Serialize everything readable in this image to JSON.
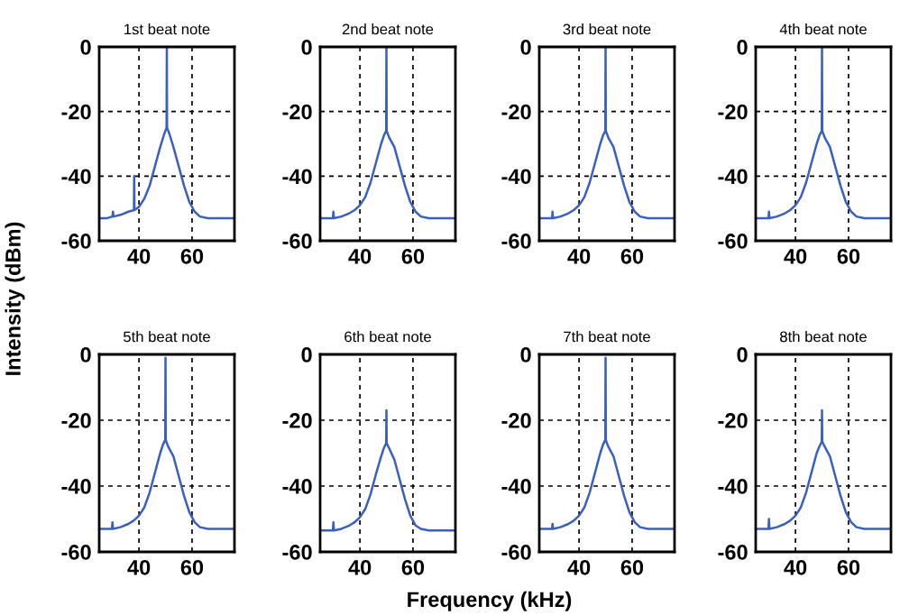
{
  "chart_data": [
    {
      "type": "line",
      "title": "1st beat note",
      "ylabel": "Intensity (dBm)",
      "color": "#3a5fbf",
      "xlim": [
        25,
        76
      ],
      "ylim": [
        -60,
        0
      ],
      "xticks": [
        40,
        60
      ],
      "yticks": [
        0,
        -20,
        -40,
        -60
      ],
      "grid": true,
      "x": [
        25,
        28,
        30,
        30.2,
        30.4,
        33,
        36,
        38.1,
        38.2,
        38.3,
        40,
        42,
        44,
        46,
        48,
        49.5,
        50.4,
        50.5,
        50.6,
        51.5,
        53,
        55,
        57,
        59,
        61,
        63,
        66,
        70,
        76
      ],
      "values": [
        -53,
        -53,
        -52.5,
        -51,
        -52.5,
        -52,
        -51,
        -50.5,
        -40,
        -50.5,
        -49.5,
        -47,
        -43,
        -37,
        -31,
        -27,
        -25,
        0,
        -25,
        -27,
        -31,
        -37,
        -43,
        -48,
        -51,
        -52.5,
        -53,
        -53,
        -53
      ]
    },
    {
      "type": "line",
      "title": "2nd beat note",
      "color": "#3a5fbf",
      "xlim": [
        25,
        76
      ],
      "ylim": [
        -60,
        0
      ],
      "xticks": [
        40,
        60
      ],
      "yticks": [
        0,
        -20,
        -40,
        -60
      ],
      "grid": true,
      "x": [
        25,
        28,
        29.8,
        30,
        30.2,
        33,
        36,
        38,
        40,
        42,
        44,
        46,
        48,
        49,
        49.9,
        50,
        50.1,
        51,
        53,
        55,
        57,
        59,
        61,
        63,
        66,
        70,
        76
      ],
      "values": [
        -53,
        -53,
        -53,
        -51,
        -53,
        -52.5,
        -51.5,
        -50.5,
        -49,
        -46.5,
        -42,
        -36,
        -30,
        -27.5,
        -26,
        0,
        -26,
        -28,
        -31,
        -37,
        -43,
        -48,
        -51,
        -52.5,
        -53,
        -53,
        -53
      ]
    },
    {
      "type": "line",
      "title": "3rd beat note",
      "color": "#3a5fbf",
      "xlim": [
        25,
        76
      ],
      "ylim": [
        -60,
        0
      ],
      "xticks": [
        40,
        60
      ],
      "yticks": [
        0,
        -20,
        -40,
        -60
      ],
      "grid": true,
      "x": [
        25,
        28,
        29.8,
        30,
        30.2,
        33,
        36,
        38,
        40,
        42,
        44,
        46,
        48,
        49,
        49.9,
        50,
        50.1,
        51,
        53,
        55,
        57,
        59,
        61,
        63,
        66,
        70,
        76
      ],
      "values": [
        -53,
        -53,
        -53,
        -51,
        -53,
        -52.5,
        -51.5,
        -50.5,
        -49,
        -46.5,
        -42,
        -36,
        -30,
        -27.5,
        -26,
        0,
        -26,
        -28,
        -31,
        -37,
        -43,
        -48,
        -51,
        -52.5,
        -53,
        -53,
        -53
      ]
    },
    {
      "type": "line",
      "title": "4th beat note",
      "color": "#3a5fbf",
      "xlim": [
        25,
        76
      ],
      "ylim": [
        -60,
        0
      ],
      "xticks": [
        40,
        60
      ],
      "yticks": [
        0,
        -20,
        -40,
        -60
      ],
      "grid": true,
      "x": [
        25,
        28,
        29.8,
        30,
        30.2,
        33,
        36,
        38,
        40,
        42,
        44,
        46,
        48,
        49,
        49.9,
        50,
        50.1,
        51,
        53,
        55,
        57,
        59,
        61,
        63,
        66,
        70,
        76
      ],
      "values": [
        -53,
        -53,
        -53,
        -51,
        -53,
        -52.5,
        -51.5,
        -50.5,
        -49,
        -46.5,
        -42,
        -36,
        -30,
        -27.5,
        -26,
        0,
        -26,
        -28,
        -31,
        -37,
        -43,
        -48,
        -51,
        -52.5,
        -53,
        -53,
        -53
      ]
    },
    {
      "type": "line",
      "title": "5th beat note",
      "color": "#3a5fbf",
      "xlim": [
        25,
        76
      ],
      "ylim": [
        -60,
        0
      ],
      "xticks": [
        40,
        60
      ],
      "yticks": [
        0,
        -20,
        -40,
        -60
      ],
      "grid": true,
      "x": [
        25,
        28,
        29.8,
        30,
        30.2,
        33,
        36,
        38,
        40,
        42,
        44,
        46,
        48,
        49,
        49.9,
        50,
        50.1,
        51,
        53,
        55,
        57,
        59,
        61,
        63,
        66,
        70,
        76
      ],
      "values": [
        -53,
        -53,
        -53,
        -51,
        -53,
        -52.5,
        -51.5,
        -50.5,
        -49,
        -46.5,
        -42,
        -36,
        -30,
        -27.5,
        -26,
        -1,
        -26,
        -28,
        -31,
        -37,
        -43,
        -48,
        -51,
        -52.5,
        -53,
        -53,
        -53
      ]
    },
    {
      "type": "line",
      "title": "6th beat note",
      "xlabel": "Frequency (kHz)",
      "color": "#3a5fbf",
      "xlim": [
        25,
        76
      ],
      "ylim": [
        -60,
        0
      ],
      "xticks": [
        40,
        60
      ],
      "yticks": [
        0,
        -20,
        -40,
        -60
      ],
      "grid": true,
      "x": [
        25,
        28,
        29.8,
        30,
        30.2,
        33,
        36,
        38,
        40,
        42,
        44,
        46,
        48,
        49,
        49.9,
        50,
        50.1,
        51,
        53,
        55,
        57,
        59,
        61,
        63,
        66,
        70,
        76
      ],
      "values": [
        -53.5,
        -53.5,
        -53.5,
        -51,
        -53.5,
        -53,
        -52,
        -51,
        -49.5,
        -47,
        -42.5,
        -36.5,
        -31,
        -28.5,
        -27,
        -17,
        -27,
        -28.5,
        -32,
        -38,
        -44,
        -49,
        -52,
        -53,
        -53.5,
        -53.5,
        -53.5
      ]
    },
    {
      "type": "line",
      "title": "7th beat note",
      "color": "#3a5fbf",
      "xlim": [
        25,
        76
      ],
      "ylim": [
        -60,
        0
      ],
      "xticks": [
        40,
        60
      ],
      "yticks": [
        0,
        -20,
        -40,
        -60
      ],
      "grid": true,
      "x": [
        25,
        28,
        29.8,
        30,
        30.2,
        33,
        36,
        38,
        40,
        42,
        44,
        46,
        48,
        49,
        49.9,
        50,
        50.1,
        51,
        53,
        55,
        57,
        59,
        61,
        63,
        66,
        70,
        76
      ],
      "values": [
        -53,
        -53,
        -53,
        -51.5,
        -53,
        -52.5,
        -51.5,
        -50.5,
        -49,
        -46.5,
        -42,
        -36,
        -30,
        -27.5,
        -26,
        -1,
        -26,
        -28,
        -31,
        -37,
        -43,
        -48,
        -51,
        -52.5,
        -53,
        -53,
        -53
      ]
    },
    {
      "type": "line",
      "title": "8th beat note",
      "color": "#3a5fbf",
      "xlim": [
        25,
        76
      ],
      "ylim": [
        -60,
        0
      ],
      "xticks": [
        40,
        60
      ],
      "yticks": [
        0,
        -20,
        -40,
        -60
      ],
      "grid": true,
      "x": [
        25,
        28,
        29.8,
        30,
        30.2,
        33,
        36,
        38,
        40,
        42,
        44,
        46,
        48,
        49,
        49.9,
        50,
        50.1,
        51,
        53,
        55,
        57,
        59,
        61,
        63,
        66,
        70,
        76
      ],
      "values": [
        -53,
        -53,
        -53,
        -50,
        -53,
        -52.5,
        -51.5,
        -50.5,
        -49,
        -46.5,
        -42,
        -36,
        -30,
        -28,
        -26.5,
        -17,
        -26.5,
        -28,
        -31,
        -37,
        -43,
        -48,
        -51,
        -52.5,
        -53,
        -53,
        -53
      ]
    }
  ]
}
